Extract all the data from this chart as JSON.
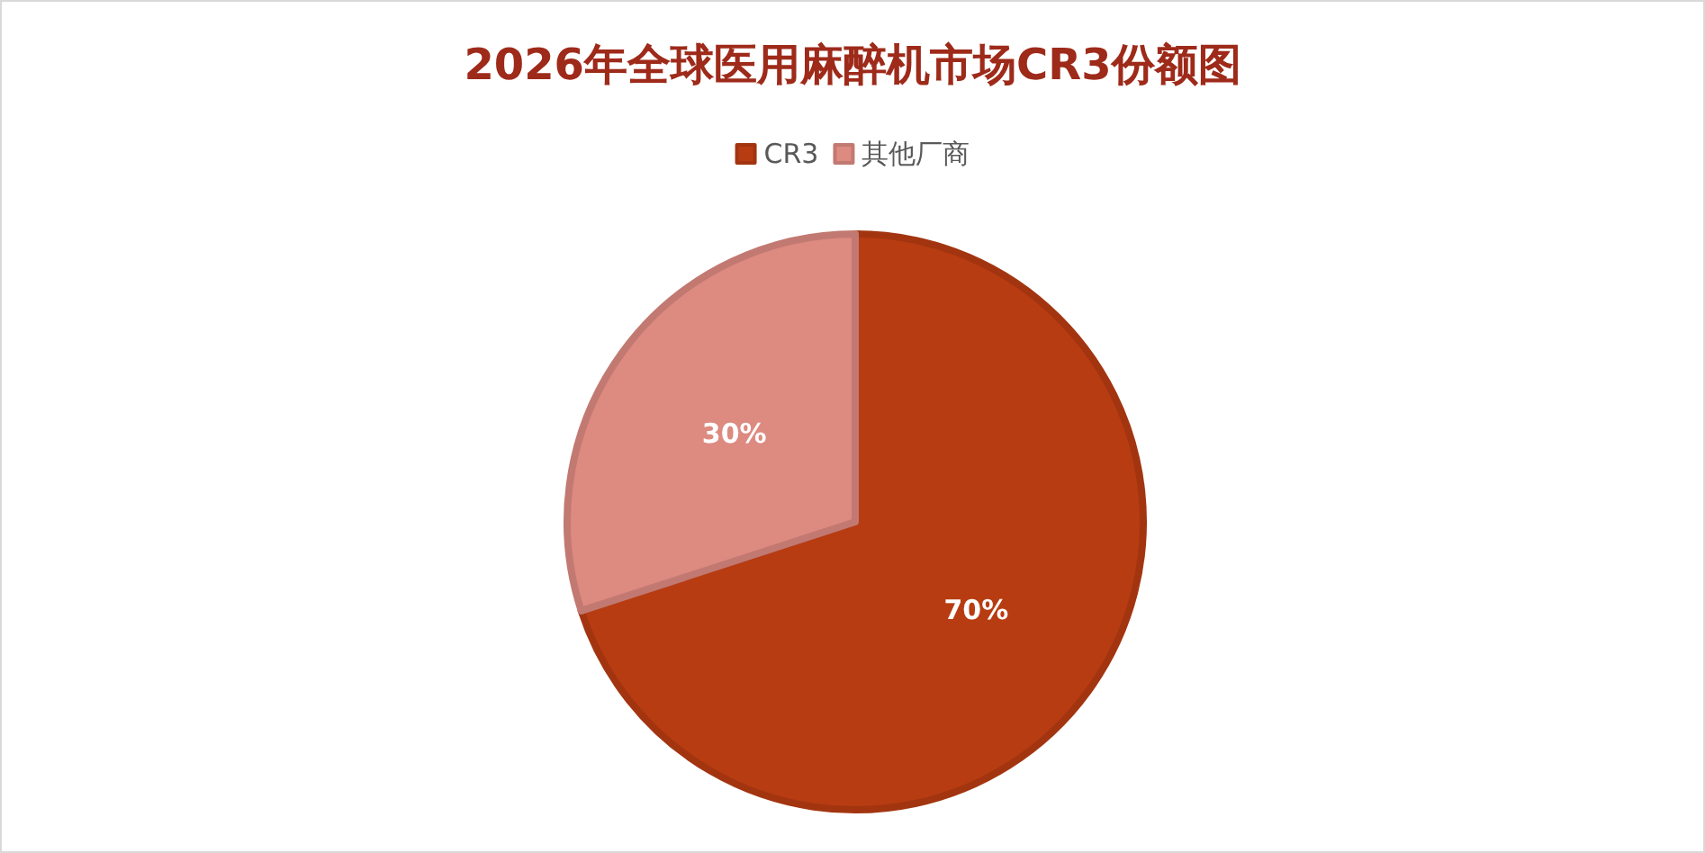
{
  "chart_data": {
    "type": "pie",
    "title": "2026年全球医用麻醉机市场CR3份额图",
    "categories": [
      "CR3",
      "其他厂商"
    ],
    "values": [
      70,
      30
    ],
    "colors": [
      "#b83c12",
      "#dd8a80"
    ],
    "value_labels": [
      "70%",
      "30%"
    ],
    "legend": "top"
  }
}
